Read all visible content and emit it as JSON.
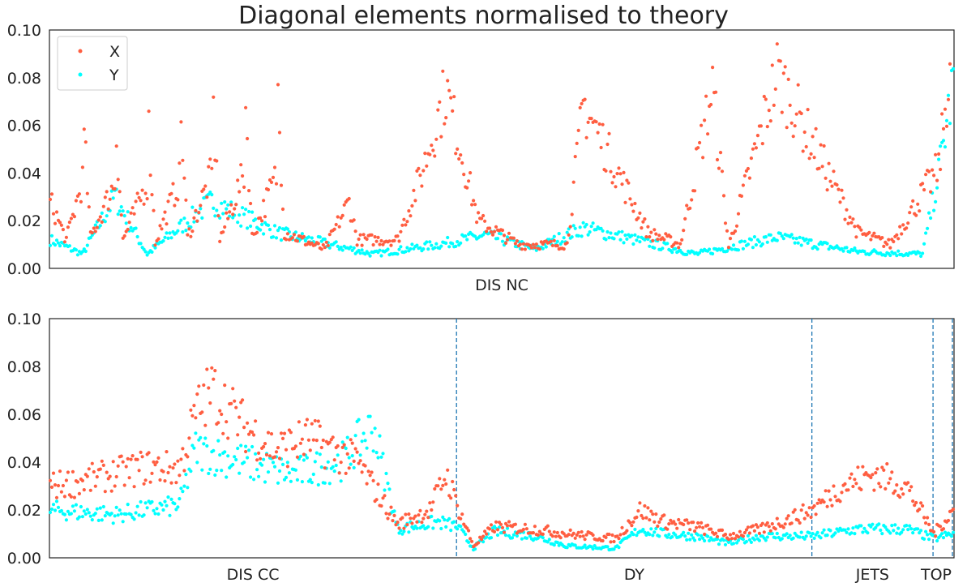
{
  "chart_data": [
    {
      "type": "scatter",
      "title": "Diagonal elements normalised to theory",
      "xlabel": "DIS NC",
      "ylabel": "",
      "ylim": [
        0,
        0.1
      ],
      "yticks": [
        "0.00",
        "0.02",
        "0.04",
        "0.06",
        "0.08",
        "0.10"
      ],
      "grid": false,
      "legend": {
        "position": "top-left",
        "entries": [
          "X",
          "Y"
        ]
      },
      "n_points": 560,
      "series": [
        {
          "name": "X",
          "color": "#ff5e41",
          "profile": [
            [
              0,
              0.028
            ],
            [
              10,
              0.012
            ],
            [
              20,
              0.037
            ],
            [
              21,
              0.055
            ],
            [
              25,
              0.013
            ],
            [
              40,
              0.036
            ],
            [
              41,
              0.056
            ],
            [
              45,
              0.012
            ],
            [
              60,
              0.036
            ],
            [
              61,
              0.058
            ],
            [
              65,
              0.011
            ],
            [
              80,
              0.037
            ],
            [
              81,
              0.062
            ],
            [
              85,
              0.013
            ],
            [
              100,
              0.04
            ],
            [
              101,
              0.066
            ],
            [
              105,
              0.012
            ],
            [
              120,
              0.04
            ],
            [
              121,
              0.068
            ],
            [
              125,
              0.013
            ],
            [
              140,
              0.039
            ],
            [
              141,
              0.072
            ],
            [
              145,
              0.015
            ],
            [
              170,
              0.008
            ],
            [
              185,
              0.028
            ],
            [
              190,
              0.012
            ],
            [
              215,
              0.012
            ],
            [
              230,
              0.04
            ],
            [
              245,
              0.075
            ],
            [
              265,
              0.02
            ],
            [
              290,
              0.01
            ],
            [
              320,
              0.01
            ],
            [
              330,
              0.069
            ],
            [
              370,
              0.015
            ],
            [
              390,
              0.01
            ],
            [
              410,
              0.076
            ],
            [
              420,
              0.009
            ],
            [
              450,
              0.082
            ],
            [
              470,
              0.055
            ],
            [
              500,
              0.015
            ],
            [
              520,
              0.01
            ],
            [
              550,
              0.042
            ],
            [
              559,
              0.098
            ]
          ]
        },
        {
          "name": "Y",
          "color": "#00ffff",
          "profile": [
            [
              0,
              0.012
            ],
            [
              20,
              0.006
            ],
            [
              40,
              0.03
            ],
            [
              60,
              0.006
            ],
            [
              100,
              0.028
            ],
            [
              140,
              0.015
            ],
            [
              200,
              0.006
            ],
            [
              240,
              0.01
            ],
            [
              270,
              0.014
            ],
            [
              300,
              0.008
            ],
            [
              330,
              0.017
            ],
            [
              400,
              0.006
            ],
            [
              450,
              0.013
            ],
            [
              500,
              0.007
            ],
            [
              540,
              0.006
            ],
            [
              550,
              0.04
            ],
            [
              559,
              0.078
            ]
          ]
        }
      ]
    },
    {
      "type": "scatter",
      "title": "",
      "xlabel": "",
      "ylabel": "",
      "ylim": [
        0,
        0.1
      ],
      "yticks": [
        "0.00",
        "0.02",
        "0.04",
        "0.06",
        "0.08",
        "0.10"
      ],
      "grid": false,
      "n_points": 560,
      "categories": [
        {
          "label": "DIS CC",
          "start": 0,
          "end": 252
        },
        {
          "label": "DY",
          "start": 252,
          "end": 472
        },
        {
          "label": "JETS",
          "start": 472,
          "end": 547
        },
        {
          "label": "TOP",
          "start": 547,
          "end": 560
        }
      ],
      "boundaries": [
        252,
        472,
        547,
        559
      ],
      "series": [
        {
          "name": "X",
          "color": "#ff5e41",
          "profile": [
            [
              0,
              0.03
            ],
            [
              20,
              0.032
            ],
            [
              40,
              0.035
            ],
            [
              60,
              0.038
            ],
            [
              80,
              0.037
            ],
            [
              90,
              0.06
            ],
            [
              100,
              0.07
            ],
            [
              120,
              0.055
            ],
            [
              140,
              0.045
            ],
            [
              160,
              0.05
            ],
            [
              190,
              0.04
            ],
            [
              215,
              0.014
            ],
            [
              235,
              0.02
            ],
            [
              245,
              0.035
            ],
            [
              252,
              0.022
            ],
            [
              262,
              0.005
            ],
            [
              275,
              0.013
            ],
            [
              300,
              0.012
            ],
            [
              320,
              0.01
            ],
            [
              350,
              0.008
            ],
            [
              365,
              0.02
            ],
            [
              380,
              0.015
            ],
            [
              400,
              0.013
            ],
            [
              420,
              0.009
            ],
            [
              440,
              0.012
            ],
            [
              472,
              0.02
            ],
            [
              490,
              0.03
            ],
            [
              510,
              0.035
            ],
            [
              530,
              0.03
            ],
            [
              547,
              0.01
            ],
            [
              559,
              0.02
            ]
          ]
        },
        {
          "name": "Y",
          "color": "#00ffff",
          "profile": [
            [
              0,
              0.02
            ],
            [
              40,
              0.018
            ],
            [
              80,
              0.022
            ],
            [
              90,
              0.045
            ],
            [
              120,
              0.04
            ],
            [
              150,
              0.035
            ],
            [
              180,
              0.04
            ],
            [
              200,
              0.055
            ],
            [
              215,
              0.012
            ],
            [
              240,
              0.015
            ],
            [
              252,
              0.013
            ],
            [
              262,
              0.004
            ],
            [
              275,
              0.011
            ],
            [
              300,
              0.009
            ],
            [
              320,
              0.005
            ],
            [
              350,
              0.004
            ],
            [
              365,
              0.012
            ],
            [
              380,
              0.01
            ],
            [
              400,
              0.009
            ],
            [
              420,
              0.006
            ],
            [
              440,
              0.009
            ],
            [
              472,
              0.009
            ],
            [
              500,
              0.012
            ],
            [
              530,
              0.012
            ],
            [
              547,
              0.008
            ],
            [
              559,
              0.01
            ]
          ]
        }
      ]
    }
  ]
}
